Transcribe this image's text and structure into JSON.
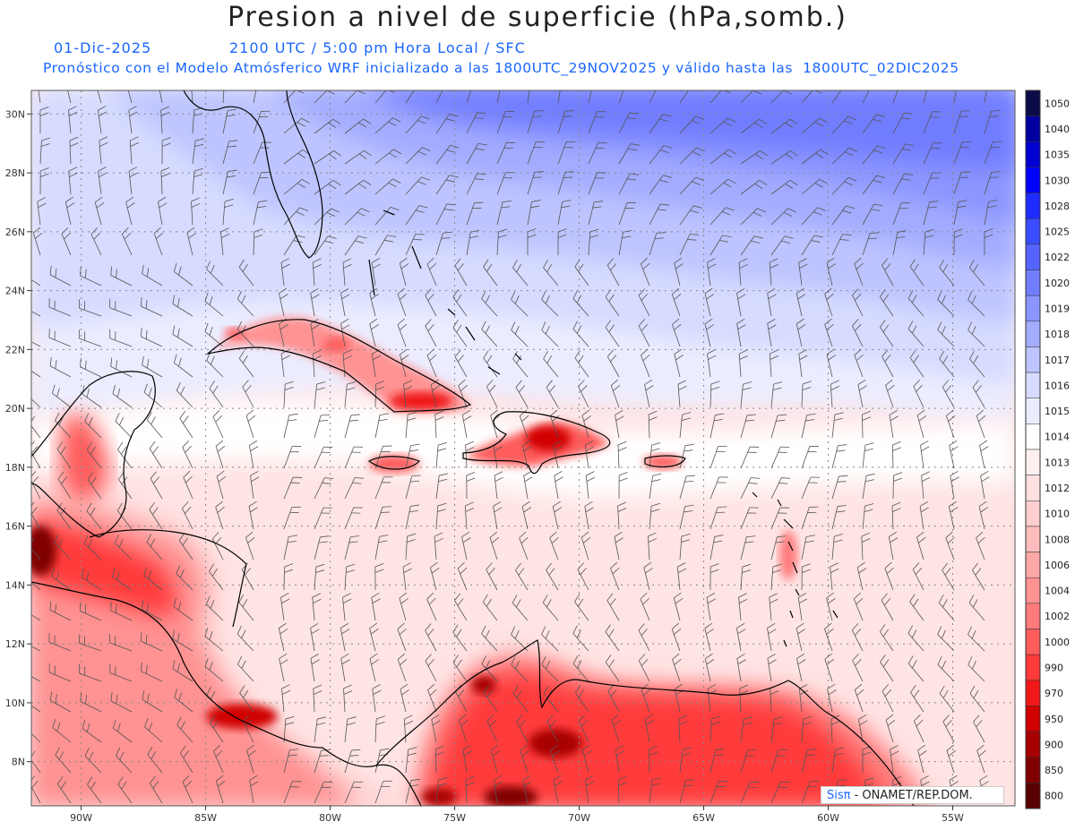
{
  "title": "Presion a nivel de superficie (hPa,somb.)",
  "subtitle": {
    "date": "01-Dic-2025",
    "time": "2100 UTC / 5:00 pm Hora Local / SFC",
    "forecast": "Pronóstico con el Modelo Atmósferico WRF inicializado a las 1800UTC_29NOV2025 y válido hasta las  1800UTC_02DIC2025"
  },
  "map": {
    "lon_range": [
      -92,
      -52.5
    ],
    "lat_range": [
      6.5,
      30.8
    ],
    "lon_ticks": [
      "90W",
      "85W",
      "80W",
      "75W",
      "70W",
      "65W",
      "60W",
      "55W"
    ],
    "lat_ticks": [
      "30N",
      "28N",
      "26N",
      "24N",
      "22N",
      "20N",
      "18N",
      "16N",
      "14N",
      "12N",
      "10N",
      "8N"
    ],
    "gridlines": "dotted",
    "wind_barbs": true
  },
  "colorbar": {
    "labels": [
      "1050",
      "1040",
      "1035",
      "1030",
      "1028",
      "1025",
      "1022",
      "1020",
      "1019",
      "1018",
      "1017",
      "1016",
      "1015",
      "1014",
      "1013",
      "1012",
      "1010",
      "1008",
      "1006",
      "1004",
      "1002",
      "1000",
      "990",
      "970",
      "950",
      "900",
      "850",
      "800"
    ],
    "colors": [
      "#0b0b4a",
      "#0000a0",
      "#0000d0",
      "#0000ff",
      "#1e2cff",
      "#3a4cff",
      "#5564ff",
      "#717dff",
      "#8a95ff",
      "#a3acff",
      "#bec4ff",
      "#d6dbff",
      "#ebedff",
      "#ffffff",
      "#fff0f0",
      "#ffe0e0",
      "#ffcfcf",
      "#ffbcbc",
      "#ffa8a8",
      "#ff9292",
      "#ff7a7a",
      "#ff5c5c",
      "#ff3a3a",
      "#f01818",
      "#d00000",
      "#a80000",
      "#800000",
      "#5a0000"
    ]
  },
  "credit": {
    "brand": "Sisπ",
    "text": " - ONAMET/REP.DOM."
  }
}
